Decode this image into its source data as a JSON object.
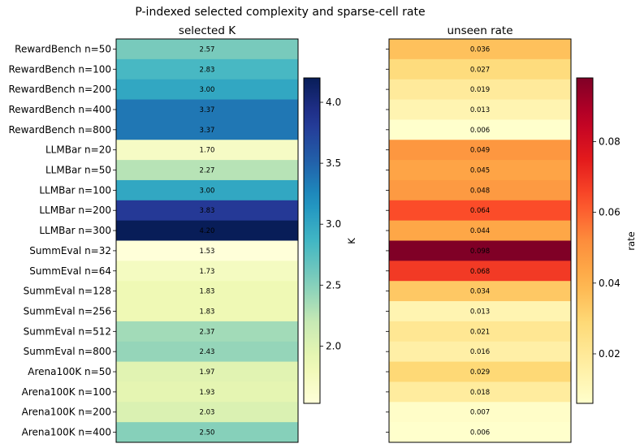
{
  "chart_data": {
    "type": "heatmap",
    "title": "P-indexed selected complexity and sparse-cell rate",
    "rows": [
      "RewardBench n=50",
      "RewardBench n=100",
      "RewardBench n=200",
      "RewardBench n=400",
      "RewardBench n=800",
      "LLMBar n=20",
      "LLMBar n=50",
      "LLMBar n=100",
      "LLMBar n=200",
      "LLMBar n=300",
      "SummEval n=32",
      "SummEval n=64",
      "SummEval n=128",
      "SummEval n=256",
      "SummEval n=512",
      "SummEval n=800",
      "Arena100K n=50",
      "Arena100K n=100",
      "Arena100K n=200",
      "Arena100K n=400"
    ],
    "panels": [
      {
        "subtitle": "selected K",
        "colormap": "YlGnBu",
        "vmin": 1.53,
        "vmax": 4.2,
        "colorbar_label": "K",
        "colorbar_ticks": [
          "2.0",
          "2.5",
          "3.0",
          "3.5",
          "4.0"
        ],
        "values": [
          2.57,
          2.83,
          3.0,
          3.37,
          3.37,
          1.7,
          2.27,
          3.0,
          3.83,
          4.2,
          1.53,
          1.73,
          1.83,
          1.83,
          2.37,
          2.43,
          1.97,
          1.93,
          2.03,
          2.5
        ],
        "labels": [
          "2.57",
          "2.83",
          "3.00",
          "3.37",
          "3.37",
          "1.70",
          "2.27",
          "3.00",
          "3.83",
          "4.20",
          "1.53",
          "1.73",
          "1.83",
          "1.83",
          "2.37",
          "2.43",
          "1.97",
          "1.93",
          "2.03",
          "2.50"
        ]
      },
      {
        "subtitle": "unseen rate",
        "colormap": "YlOrRd",
        "vmin": 0.006,
        "vmax": 0.098,
        "colorbar_label": "rate",
        "colorbar_ticks": [
          "0.02",
          "0.04",
          "0.06",
          "0.08"
        ],
        "values": [
          0.036,
          0.027,
          0.019,
          0.013,
          0.006,
          0.049,
          0.045,
          0.048,
          0.064,
          0.044,
          0.098,
          0.068,
          0.034,
          0.013,
          0.021,
          0.016,
          0.029,
          0.018,
          0.007,
          0.006
        ],
        "labels": [
          "0.036",
          "0.027",
          "0.019",
          "0.013",
          "0.006",
          "0.049",
          "0.045",
          "0.048",
          "0.064",
          "0.044",
          "0.098",
          "0.068",
          "0.034",
          "0.013",
          "0.021",
          "0.016",
          "0.029",
          "0.018",
          "0.007",
          "0.006"
        ]
      }
    ],
    "grid": false
  }
}
